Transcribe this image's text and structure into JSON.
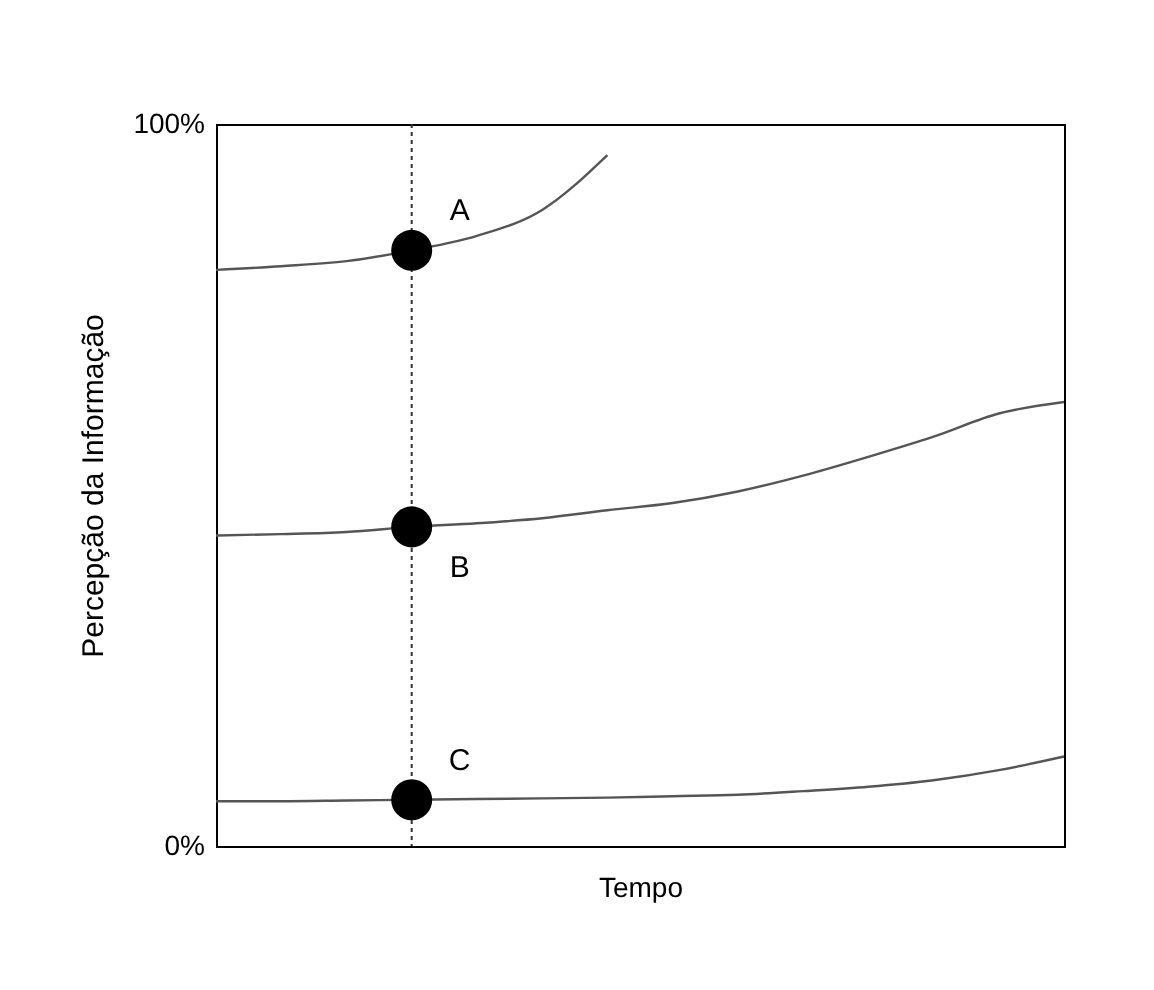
{
  "chart_data": {
    "type": "line",
    "xlabel": "Tempo",
    "ylabel": "Percepção da Informação",
    "categories": [
      null,
      null,
      null,
      null,
      null,
      null,
      null,
      null,
      null,
      null,
      null,
      null,
      null,
      null
    ],
    "ylim": [
      0,
      100
    ],
    "yticks": [
      {
        "value": 0,
        "label": "0%"
      },
      {
        "value": 100,
        "label": "100%"
      }
    ],
    "tick_labels": "y",
    "grid": false,
    "series": [
      {
        "color": "#555555",
        "values": [
          79.8,
          80.3,
          81.0,
          82.5,
          84.5,
          88.1,
          95.7,
          null,
          null,
          null,
          null,
          null,
          null,
          null
        ]
      },
      {
        "color": "#555555",
        "values": [
          43.0,
          43.2,
          43.5,
          44.2,
          44.7,
          45.4,
          46.5,
          47.5,
          49.1,
          51.3,
          53.9,
          56.7,
          59.9,
          61.5
        ]
      },
      {
        "color": "#555555",
        "values": [
          6.2,
          6.2,
          6.3,
          6.4,
          6.5,
          6.6,
          6.7,
          6.9,
          7.1,
          7.6,
          8.2,
          9.1,
          10.5,
          12.4
        ]
      },
      {
        "type": "scatter",
        "color": "#000000",
        "marker": "circle",
        "values": [
          null,
          null,
          null,
          82.5,
          null,
          null,
          null,
          null,
          null,
          null,
          null,
          null,
          null,
          null
        ]
      },
      {
        "type": "scatter",
        "color": "#000000",
        "marker": "circle",
        "values": [
          null,
          null,
          null,
          44.2,
          null,
          null,
          null,
          null,
          null,
          null,
          null,
          null,
          null,
          null
        ]
      },
      {
        "type": "scatter",
        "color": "#000000",
        "marker": "circle",
        "values": [
          null,
          null,
          null,
          6.4,
          null,
          null,
          null,
          null,
          null,
          null,
          null,
          null,
          null,
          null
        ]
      }
    ],
    "annotations": [
      "A",
      "B",
      "C"
    ]
  }
}
